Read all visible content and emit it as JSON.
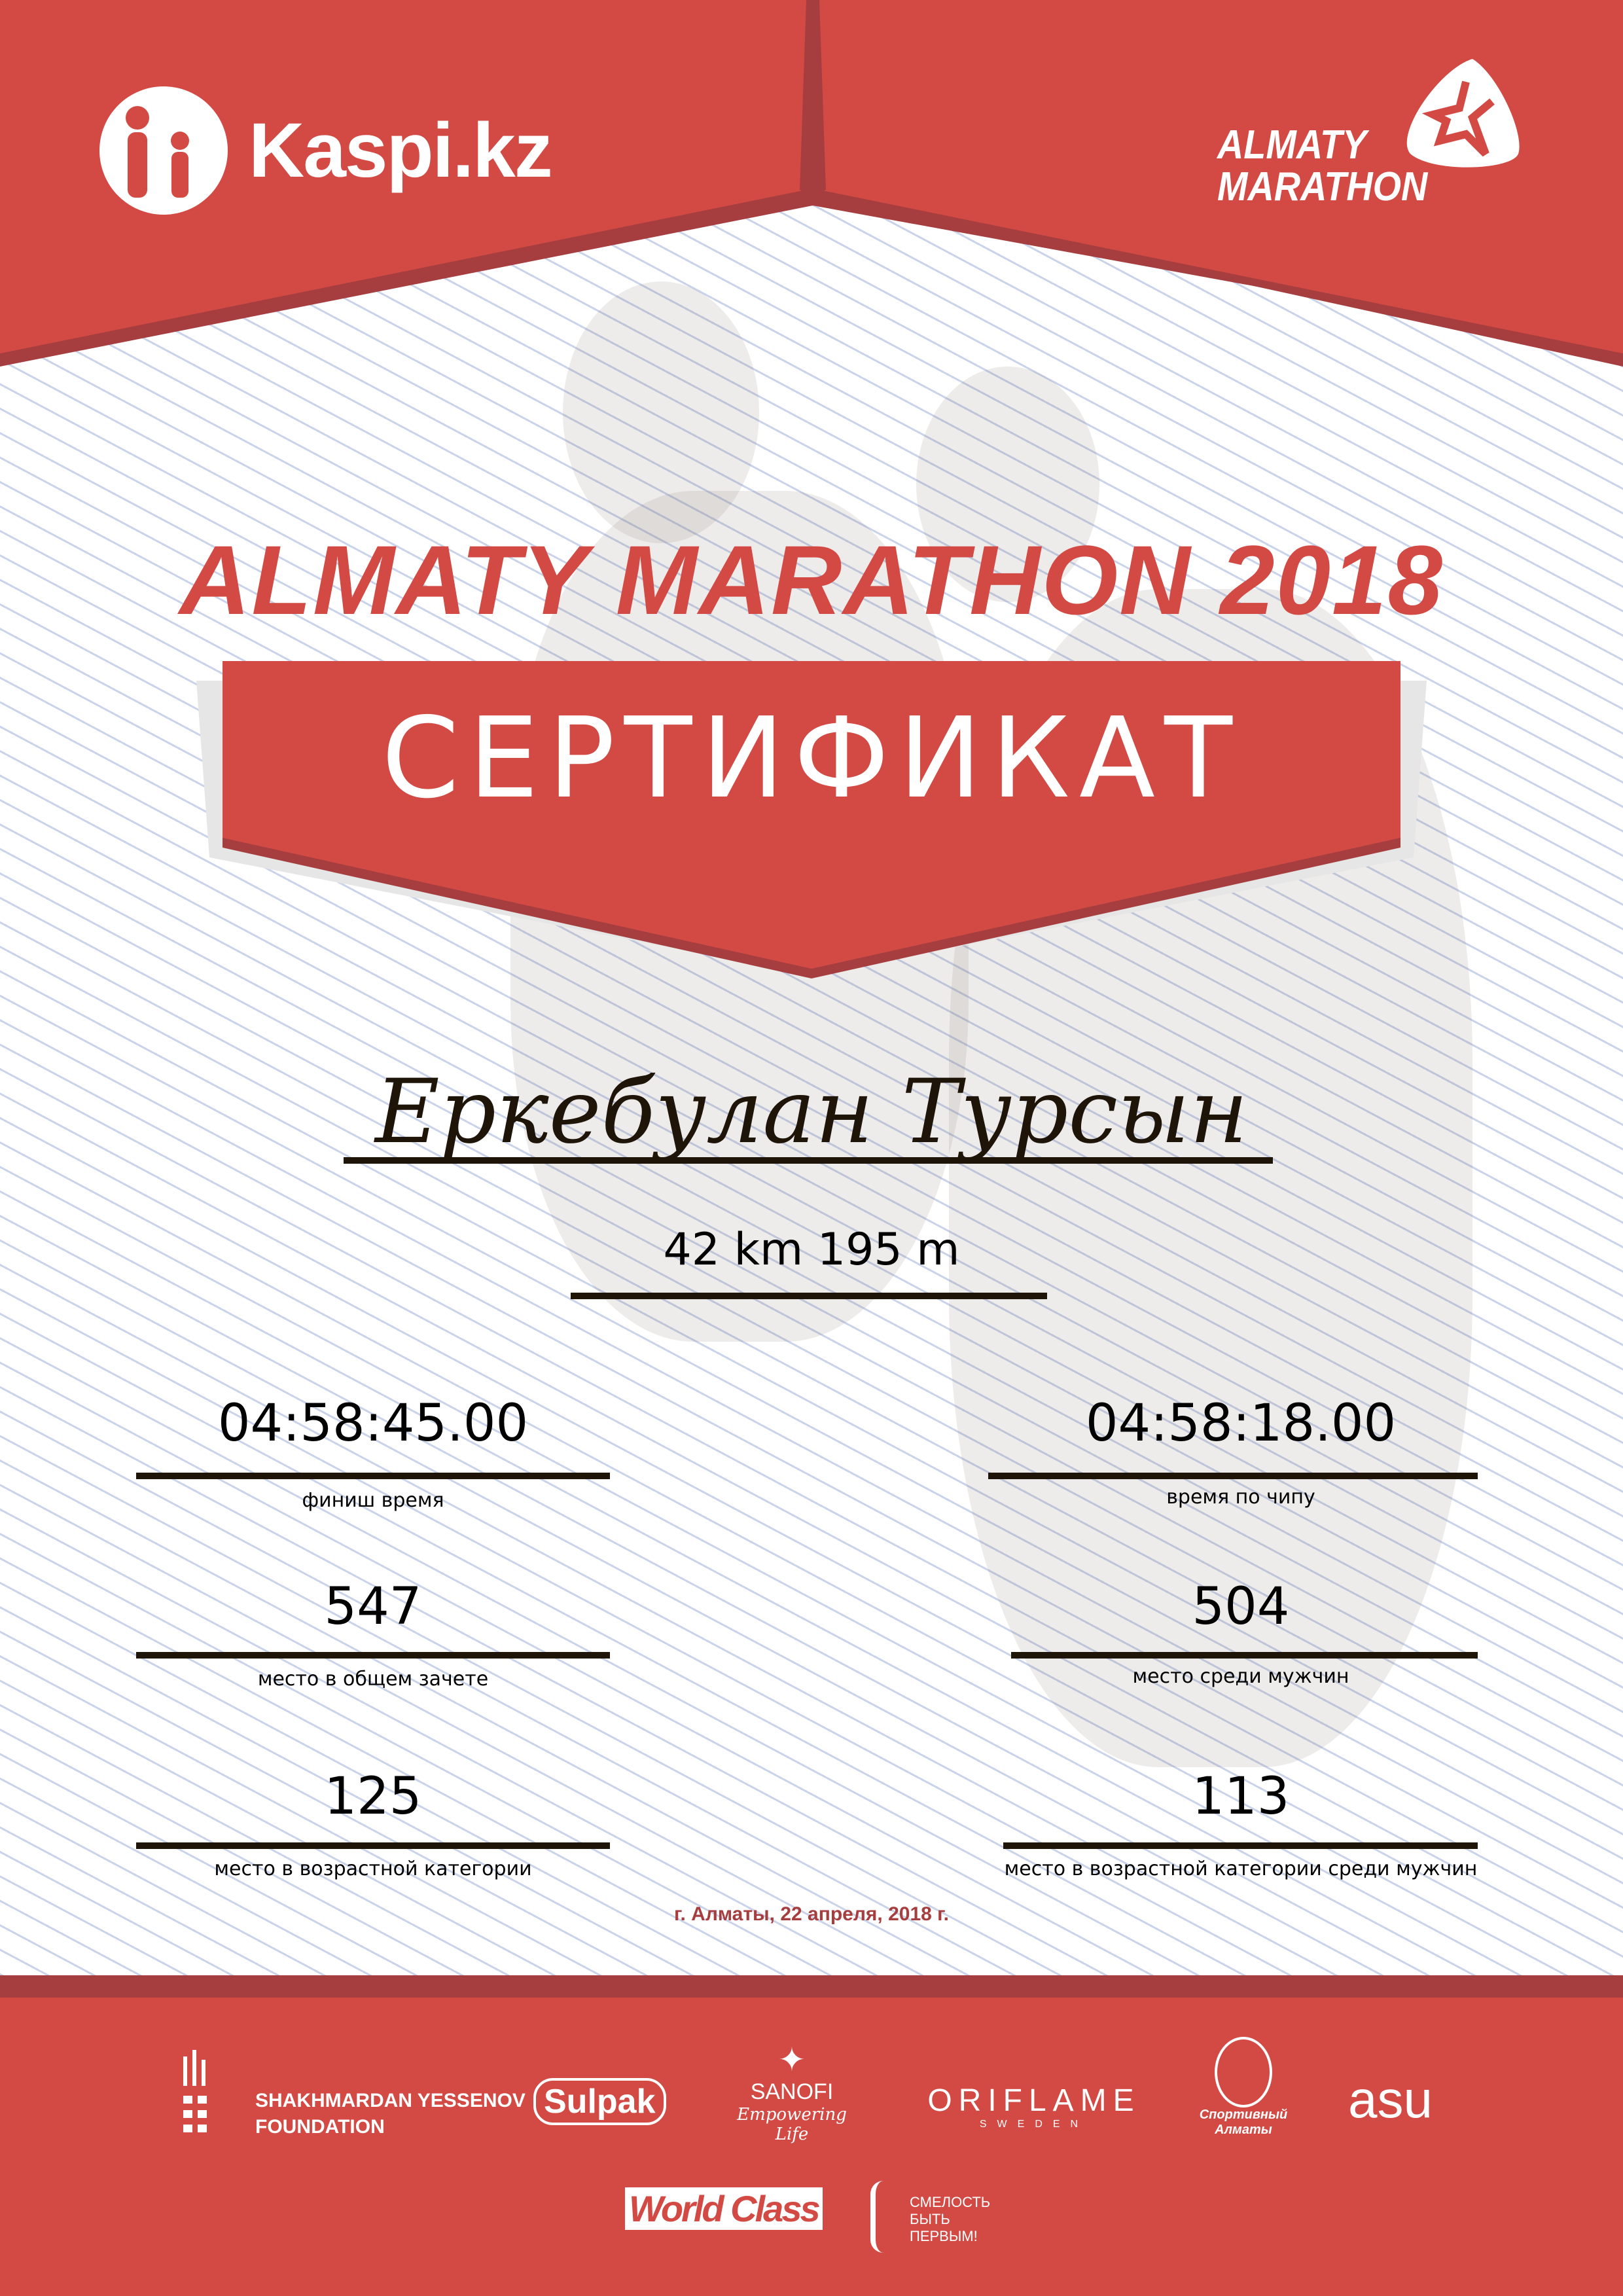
{
  "colors": {
    "brand_red": "#D34A44",
    "dark_red": "#A63E3F",
    "ink": "#1e1408"
  },
  "header": {
    "kaspi_logo": "Kaspi.kz",
    "marathon_logo": [
      "ALMATY",
      "MARATHON"
    ]
  },
  "title": "ALMATY MARATHON 2018",
  "certificate_label": "СЕРТИФИКАТ",
  "participant": {
    "name": "Еркебулан Турсын",
    "distance": "42 km 195 m"
  },
  "results": [
    {
      "value": "04:58:45.00",
      "label": "финиш время"
    },
    {
      "value": "04:58:18.00",
      "label": "время по чипу"
    },
    {
      "value": "547",
      "label": "место в общем зачете"
    },
    {
      "value": "504",
      "label": "место среди мужчин"
    },
    {
      "value": "125",
      "label": "место в возрастной категории"
    },
    {
      "value": "113",
      "label": "место в возрастной категории среди мужчин"
    }
  ],
  "date_place": "г. Алматы, 22 апреля, 2018 г.",
  "sponsors": {
    "yessenov": [
      "SHAKHMARDAN YESSENOV",
      "FOUNDATION"
    ],
    "sulpak": "Sulpak",
    "sanofi": "SANOFI",
    "sanofi_tagline": "Empowering Life",
    "oriflame": "ORIFLAME",
    "oriflame_sub": "SWEDEN",
    "sport_almaty": [
      "Спортивный",
      "Алматы"
    ],
    "asu": "asu",
    "worldclass": "World Class",
    "fund": [
      "СМЕЛОСТЬ",
      "БЫТЬ",
      "ПЕРВЫМ!"
    ]
  }
}
